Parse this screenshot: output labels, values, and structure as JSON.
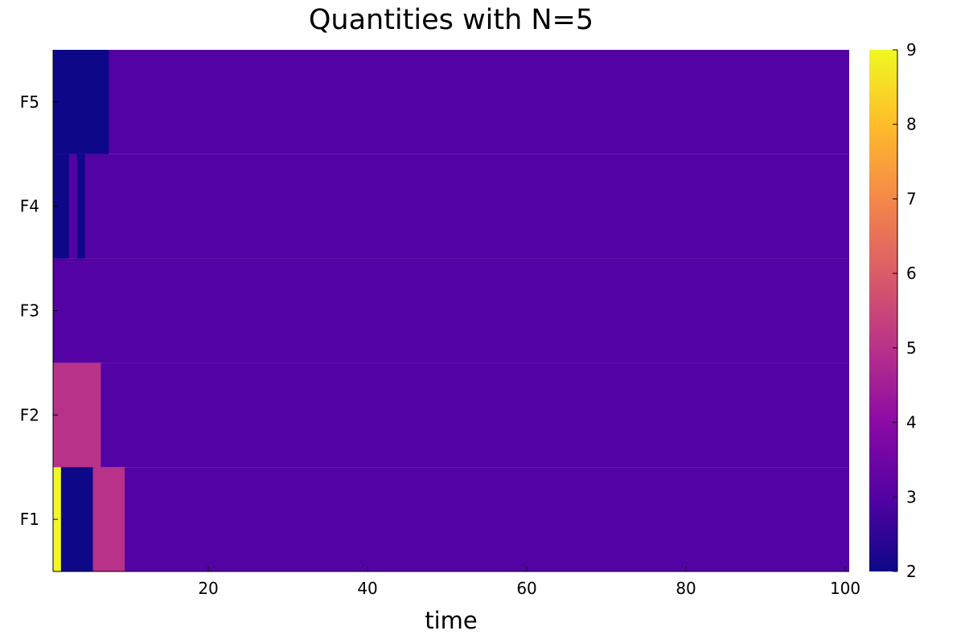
{
  "chart_data": {
    "type": "heatmap",
    "title": "Quantities with N=5",
    "xlabel": "time",
    "ylabel": "",
    "xlim": [
      1,
      100
    ],
    "x_ticks": [
      "20",
      "40",
      "60",
      "80",
      "100"
    ],
    "x_tick_values": [
      20,
      40,
      60,
      80,
      100
    ],
    "rows": [
      "F1",
      "F2",
      "F3",
      "F4",
      "F5"
    ],
    "colorbar": {
      "range": [
        2,
        9
      ],
      "ticks": [
        "2",
        "3",
        "4",
        "5",
        "6",
        "7",
        "8",
        "9"
      ],
      "tick_values": [
        2,
        3,
        4,
        5,
        6,
        7,
        8,
        9
      ],
      "colormap": "plasma"
    },
    "default_value": 3,
    "segments": [
      {
        "row": "F1",
        "t_start": 1,
        "t_end": 1,
        "value": 9
      },
      {
        "row": "F1",
        "t_start": 2,
        "t_end": 5,
        "value": 2
      },
      {
        "row": "F1",
        "t_start": 6,
        "t_end": 9,
        "value": 5
      },
      {
        "row": "F2",
        "t_start": 1,
        "t_end": 6,
        "value": 5
      },
      {
        "row": "F4",
        "t_start": 1,
        "t_end": 2,
        "value": 2
      },
      {
        "row": "F4",
        "t_start": 4,
        "t_end": 4,
        "value": 2
      },
      {
        "row": "F5",
        "t_start": 1,
        "t_end": 7,
        "value": 2
      }
    ]
  }
}
